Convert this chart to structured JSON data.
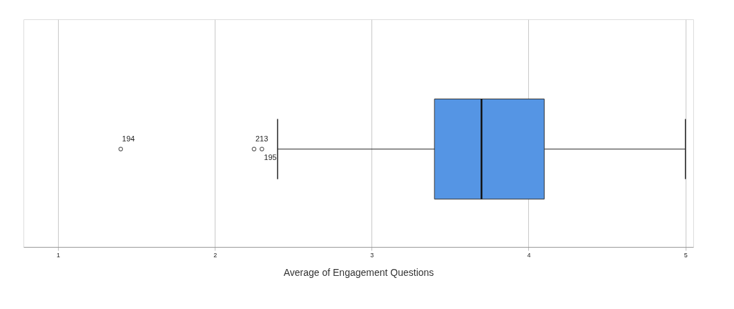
{
  "chart_data": {
    "type": "box",
    "orientation": "horizontal",
    "xlabel": "Average of Engagement Questions",
    "categories": [
      null
    ],
    "series": [
      {
        "color": "#5595e4",
        "boxes": [
          {
            "low": 2.4,
            "q1": 3.4,
            "median": 3.7,
            "q3": 4.1,
            "high": 5.0,
            "outliers": [
              1.4,
              2.25,
              2.3
            ]
          }
        ]
      }
    ],
    "xlim": [
      0.78,
      5.05
    ],
    "xticks": [
      1,
      2,
      3,
      4,
      5
    ],
    "grid": "x",
    "annotations": [
      "194",
      "213",
      "195"
    ]
  }
}
